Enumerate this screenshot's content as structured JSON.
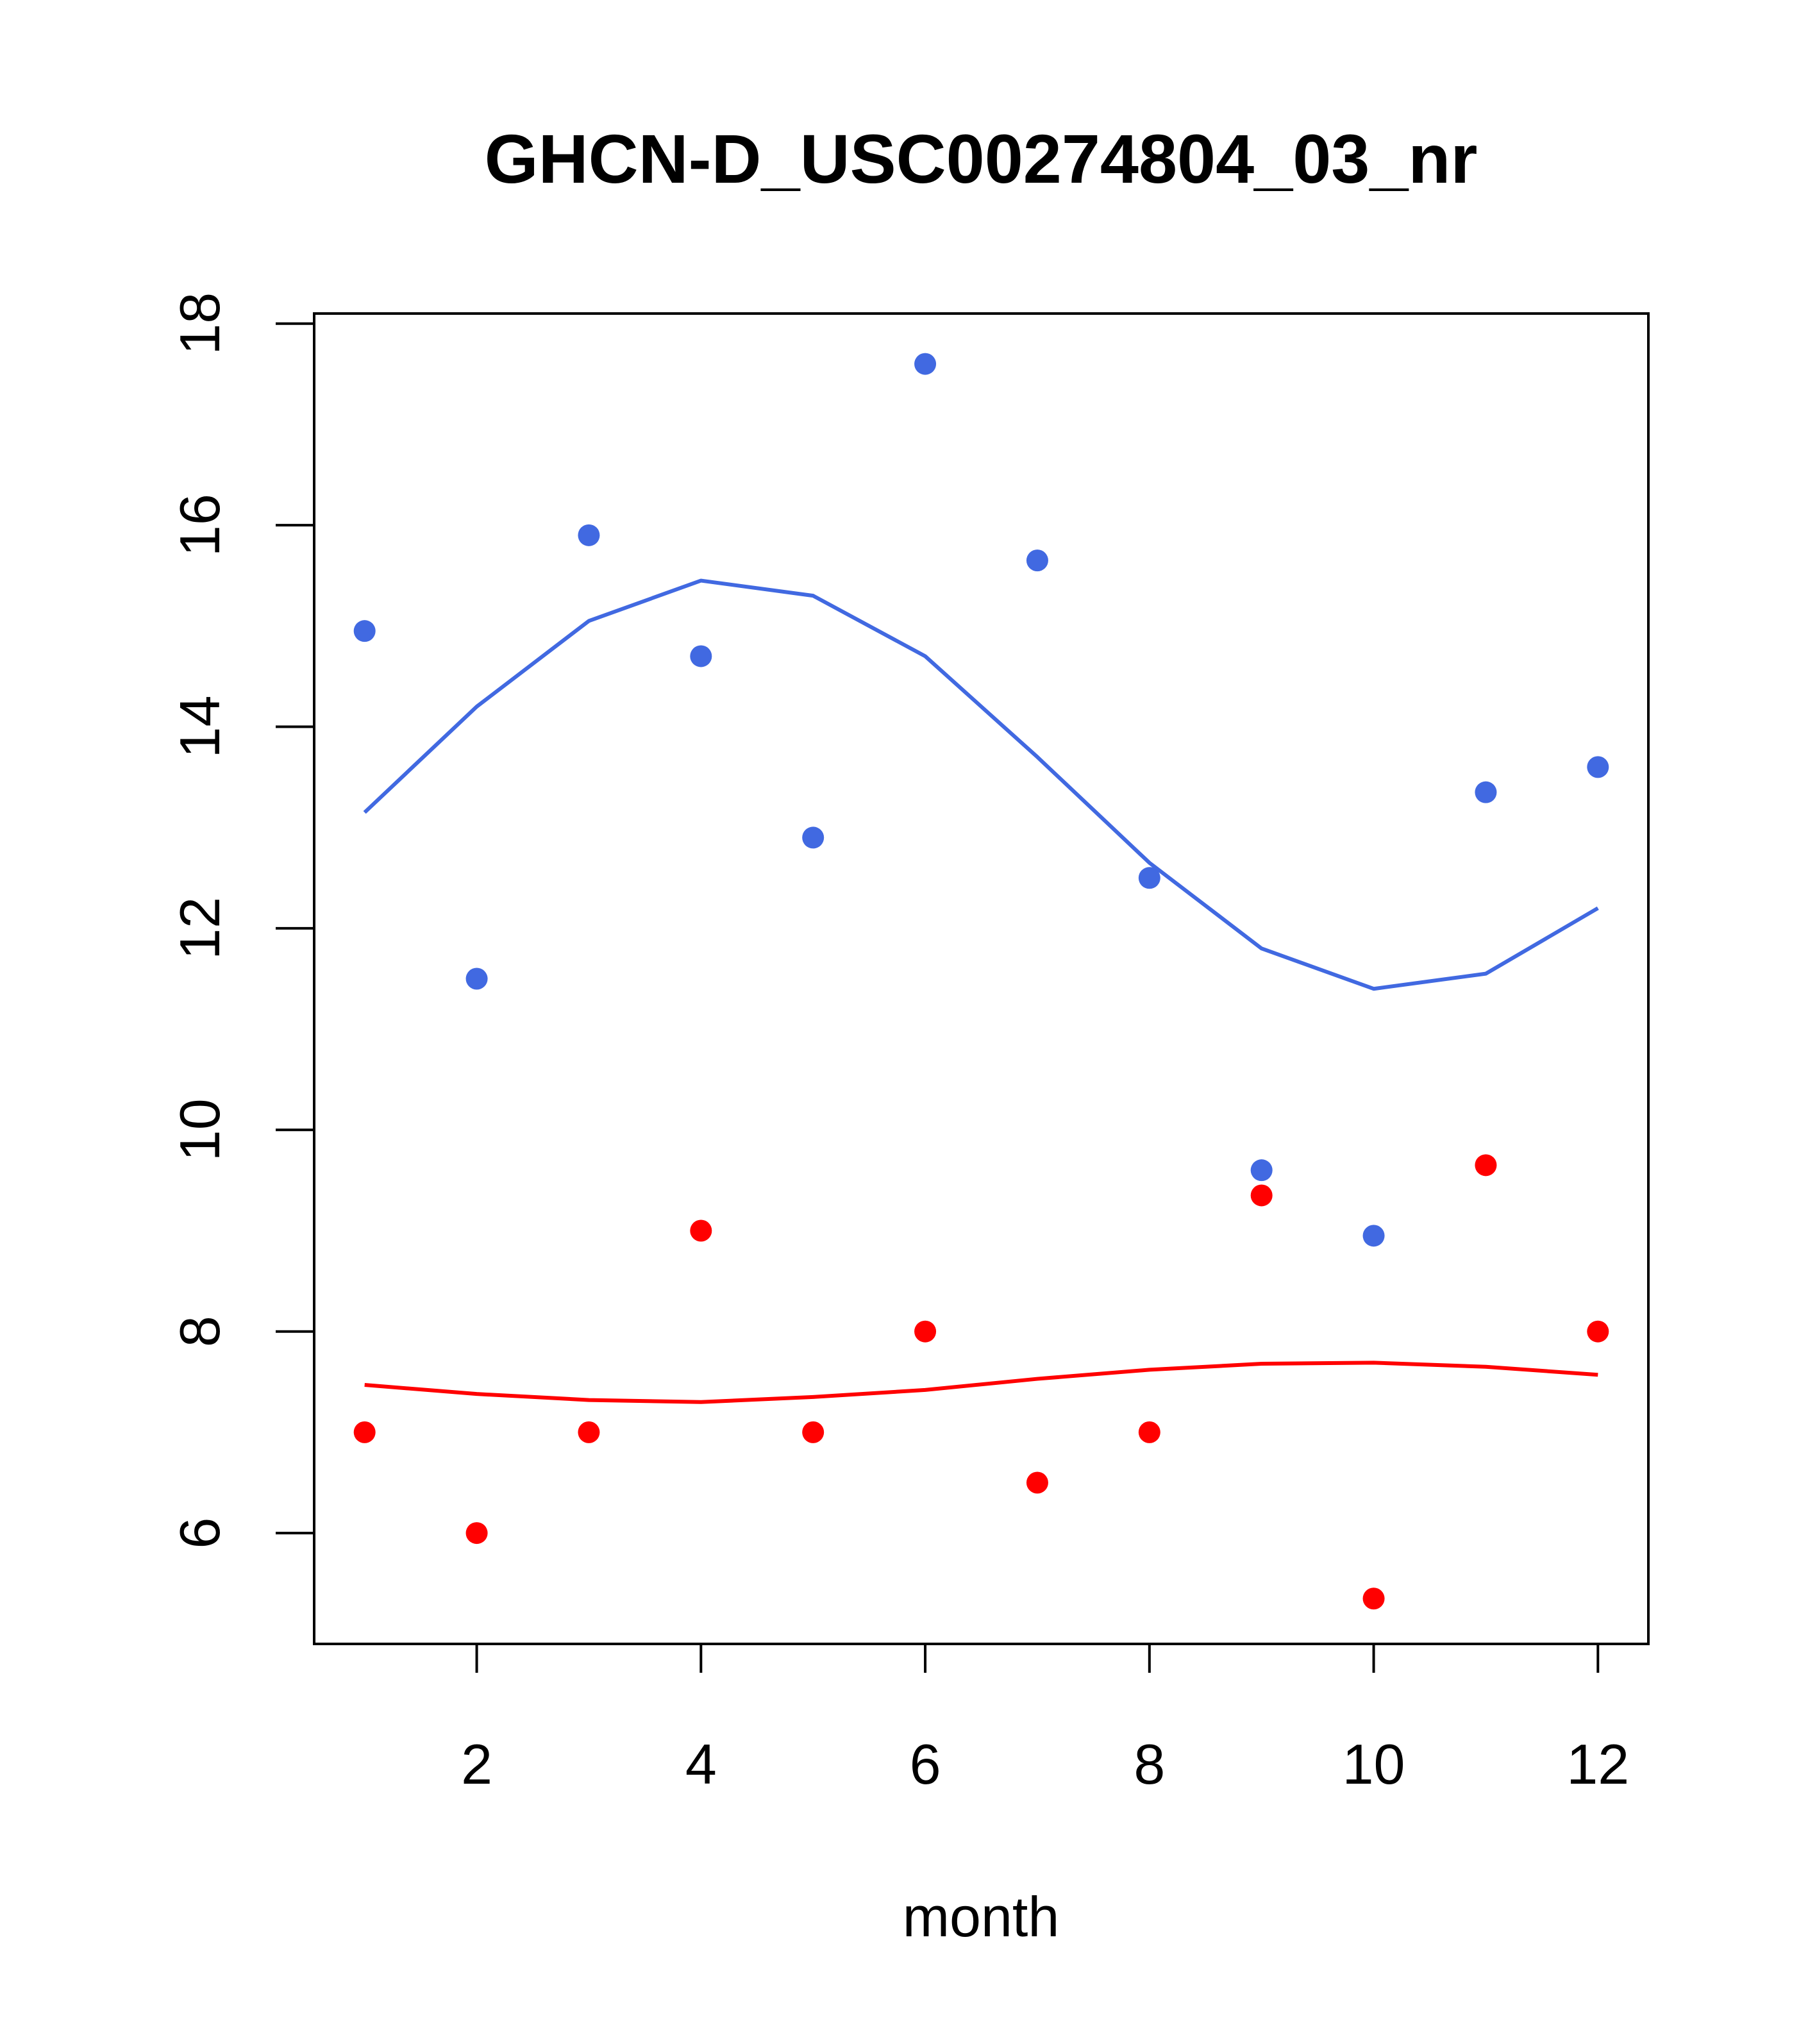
{
  "chart_data": {
    "type": "scatter",
    "title": "GHCN-D_USC00274804_03_nr",
    "xlabel": "month",
    "ylabel": "",
    "xlim": [
      0.55,
      12.45
    ],
    "ylim": [
      4.9,
      18.1
    ],
    "xticks": [
      2,
      4,
      6,
      8,
      10,
      12
    ],
    "yticks": [
      6,
      8,
      10,
      12,
      14,
      16,
      18
    ],
    "grid": false,
    "legend": "none",
    "series": [
      {
        "kind": "points",
        "color": "#4169E1",
        "x": [
          1,
          2,
          3,
          4,
          5,
          6,
          7,
          8,
          9,
          10,
          11,
          12
        ],
        "values": [
          14.95,
          11.5,
          15.9,
          14.7,
          12.9,
          17.6,
          15.65,
          12.5,
          9.6,
          8.95,
          13.35,
          13.6
        ]
      },
      {
        "kind": "line",
        "color": "#4169E1",
        "x": [
          1,
          2,
          3,
          4,
          5,
          6,
          7,
          8,
          9,
          10,
          11,
          12
        ],
        "values": [
          13.15,
          14.2,
          15.05,
          15.45,
          15.3,
          14.7,
          13.7,
          12.65,
          11.8,
          11.4,
          11.55,
          12.2
        ]
      },
      {
        "kind": "points",
        "color": "#FF0000",
        "x": [
          1,
          2,
          3,
          4,
          5,
          6,
          7,
          8,
          9,
          10,
          11,
          12
        ],
        "values": [
          7.0,
          6.0,
          7.0,
          9.0,
          7.0,
          8.0,
          6.5,
          7.0,
          9.35,
          5.35,
          9.65,
          8.0
        ]
      },
      {
        "kind": "line",
        "color": "#FF0000",
        "x": [
          1,
          2,
          3,
          4,
          5,
          6,
          7,
          8,
          9,
          10,
          11,
          12
        ],
        "values": [
          7.47,
          7.38,
          7.32,
          7.3,
          7.35,
          7.42,
          7.53,
          7.62,
          7.68,
          7.69,
          7.65,
          7.57
        ]
      }
    ]
  }
}
